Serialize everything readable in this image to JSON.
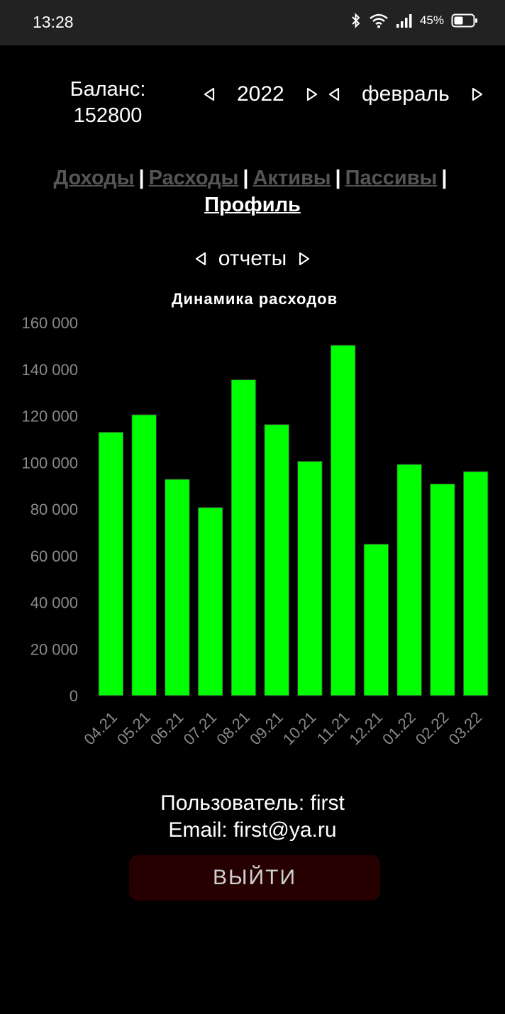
{
  "status_bar": {
    "time": "13:28",
    "battery": "45%"
  },
  "header": {
    "balance_label": "Баланс:",
    "balance_value": "152800",
    "year": "2022",
    "month": "февраль"
  },
  "tabs": [
    {
      "label": "Доходы",
      "active": false
    },
    {
      "label": "Расходы",
      "active": false
    },
    {
      "label": "Активы",
      "active": false
    },
    {
      "label": "Пассивы",
      "active": false
    },
    {
      "label": "Профиль",
      "active": true
    }
  ],
  "reports": {
    "label": "отчеты"
  },
  "chart_data": {
    "type": "bar",
    "title": "Динамика расходов",
    "categories": [
      "04.21",
      "05.21",
      "06.21",
      "07.21",
      "08.21",
      "09.21",
      "10.21",
      "11.21",
      "12.21",
      "01.22",
      "02.22",
      "03.22"
    ],
    "values": [
      113000,
      120500,
      92800,
      80700,
      135500,
      116300,
      100500,
      150300,
      65000,
      99200,
      90800,
      96100
    ],
    "ylim": [
      0,
      160000
    ],
    "yticks": [
      0,
      20000,
      40000,
      60000,
      80000,
      100000,
      120000,
      140000,
      160000
    ],
    "ytick_labels": [
      "0",
      "20 000",
      "40 000",
      "60 000",
      "80 000",
      "100 000",
      "120 000",
      "140 000",
      "160 000"
    ],
    "bar_color": "#00ff00",
    "grid": false
  },
  "profile": {
    "user_line": "Пользователь: first",
    "email_line": "Email: first@ya.ru"
  },
  "logout_label": "ВЫЙТИ"
}
